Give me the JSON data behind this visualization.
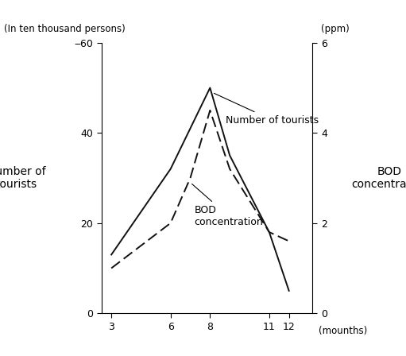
{
  "tourists_x": [
    3,
    6,
    8,
    9,
    11,
    12
  ],
  "tourists_y": [
    13,
    32,
    50,
    35,
    18,
    5
  ],
  "bod_x": [
    3,
    6,
    7,
    8,
    9,
    11,
    12
  ],
  "bod_y": [
    1.0,
    2.0,
    3.0,
    4.5,
    3.2,
    1.8,
    1.6
  ],
  "tourists_label": "Number of tourists",
  "bod_label": "BOD\nconcentration",
  "left_unit": "(In ten thousand persons)",
  "right_unit": "(ppm)",
  "xlabel_unit": "(mounths)",
  "ylim_left": [
    0,
    60
  ],
  "ylim_right": [
    0,
    6
  ],
  "yticks_left": [
    0,
    20,
    40,
    60
  ],
  "yticks_right": [
    0,
    2,
    4,
    6
  ],
  "ytick_labels_left": [
    "0",
    "20",
    "40",
    "‒60"
  ],
  "ytick_labels_right": [
    "0",
    "2",
    "4",
    "6"
  ],
  "xticks": [
    3,
    6,
    8,
    11,
    12
  ],
  "xlim": [
    2.5,
    13.2
  ],
  "bg_color": "#ffffff",
  "line_color": "#111111"
}
